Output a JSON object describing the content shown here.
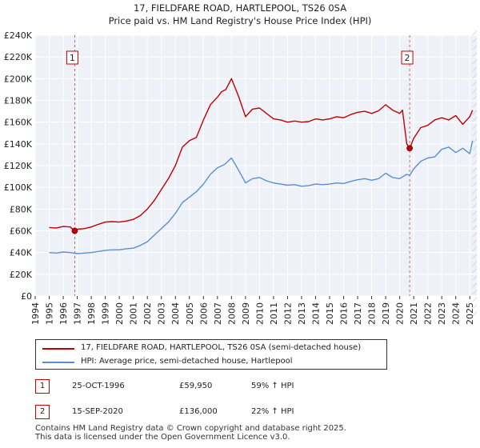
{
  "chart_data": {
    "type": "line",
    "title": "17, FIELDFARE ROAD, HARTLEPOOL, TS26 0SA",
    "subtitle": "Price paid vs. HM Land Registry's House Price Index (HPI)",
    "xlabel": "",
    "ylabel": "",
    "xlim": [
      1994,
      2025.5
    ],
    "ylim": [
      0,
      240000
    ],
    "x_ticks": [
      "1994",
      "1995",
      "1996",
      "1997",
      "1998",
      "1999",
      "2000",
      "2001",
      "2002",
      "2003",
      "2004",
      "2005",
      "2006",
      "2007",
      "2008",
      "2009",
      "2010",
      "2011",
      "2012",
      "2013",
      "2014",
      "2015",
      "2016",
      "2017",
      "2018",
      "2019",
      "2020",
      "2021",
      "2022",
      "2023",
      "2024",
      "2025"
    ],
    "y_ticks": [
      "£0",
      "£20K",
      "£40K",
      "£60K",
      "£80K",
      "£100K",
      "£120K",
      "£140K",
      "£160K",
      "£180K",
      "£200K",
      "£220K",
      "£240K"
    ],
    "grid": true,
    "series": [
      {
        "name": "17, FIELDFARE ROAD, HARTLEPOOL, TS26 0SA (semi-detached house)",
        "color": "#c00000",
        "x": [
          1995.0,
          1995.5,
          1996.0,
          1996.5,
          1996.82,
          1997.0,
          1997.5,
          1998.0,
          1998.5,
          1999.0,
          1999.5,
          2000.0,
          2000.5,
          2001.0,
          2001.5,
          2002.0,
          2002.5,
          2003.0,
          2003.5,
          2004.0,
          2004.5,
          2005.0,
          2005.5,
          2006.0,
          2006.5,
          2007.0,
          2007.3,
          2007.6,
          2008.0,
          2008.5,
          2009.0,
          2009.5,
          2010.0,
          2010.5,
          2011.0,
          2011.5,
          2012.0,
          2012.5,
          2013.0,
          2013.5,
          2014.0,
          2014.5,
          2015.0,
          2015.5,
          2016.0,
          2016.5,
          2017.0,
          2017.5,
          2018.0,
          2018.5,
          2019.0,
          2019.5,
          2020.0,
          2020.2,
          2020.5,
          2020.71,
          2021.0,
          2021.5,
          2022.0,
          2022.5,
          2023.0,
          2023.5,
          2024.0,
          2024.5,
          2025.0,
          2025.2
        ],
        "y": [
          63000,
          62500,
          64000,
          63500,
          59950,
          61500,
          62000,
          63500,
          66000,
          68000,
          68500,
          68000,
          69000,
          70500,
          74000,
          80000,
          88000,
          98000,
          108000,
          120000,
          137000,
          143000,
          146000,
          162000,
          176000,
          183000,
          188000,
          190000,
          200000,
          184000,
          165000,
          172000,
          173000,
          168000,
          163000,
          162000,
          160000,
          161000,
          160000,
          160500,
          163000,
          162000,
          163000,
          165000,
          164000,
          167000,
          169000,
          170000,
          168000,
          170500,
          176000,
          171000,
          168000,
          171000,
          140000,
          136000,
          145000,
          155000,
          157000,
          162000,
          164000,
          162000,
          166000,
          158000,
          165000,
          171000
        ]
      },
      {
        "name": "HPI: Average price, semi-detached house, Hartlepool",
        "color": "#5b8fd0",
        "x": [
          1995.0,
          1995.5,
          1996.0,
          1996.5,
          1997.0,
          1997.5,
          1998.0,
          1998.5,
          1999.0,
          1999.5,
          2000.0,
          2000.5,
          2001.0,
          2001.5,
          2002.0,
          2002.5,
          2003.0,
          2003.5,
          2004.0,
          2004.5,
          2005.0,
          2005.5,
          2006.0,
          2006.5,
          2007.0,
          2007.5,
          2008.0,
          2008.5,
          2009.0,
          2009.5,
          2010.0,
          2010.5,
          2011.0,
          2011.5,
          2012.0,
          2012.5,
          2013.0,
          2013.5,
          2014.0,
          2014.5,
          2015.0,
          2015.5,
          2016.0,
          2016.5,
          2017.0,
          2017.5,
          2018.0,
          2018.5,
          2019.0,
          2019.5,
          2020.0,
          2020.5,
          2020.71,
          2021.0,
          2021.5,
          2022.0,
          2022.5,
          2023.0,
          2023.5,
          2024.0,
          2024.5,
          2025.0,
          2025.2
        ],
        "y": [
          40000,
          39500,
          40500,
          40000,
          39000,
          39500,
          40000,
          41000,
          42000,
          42500,
          42500,
          43500,
          44000,
          46500,
          50000,
          56000,
          62000,
          68000,
          76000,
          86000,
          91000,
          96000,
          103000,
          112000,
          118000,
          121000,
          127000,
          116000,
          104000,
          108000,
          109000,
          106000,
          104000,
          103000,
          102000,
          102500,
          101000,
          101500,
          103000,
          102500,
          103000,
          104000,
          103500,
          105500,
          107000,
          108000,
          106500,
          108000,
          113000,
          109000,
          108000,
          112000,
          111000,
          117000,
          124000,
          127000,
          128000,
          135000,
          137000,
          132000,
          136000,
          131000,
          143000
        ]
      }
    ],
    "sales": [
      {
        "label": "1",
        "x": 1996.82,
        "y": 59950
      },
      {
        "label": "2",
        "x": 2020.71,
        "y": 136000
      }
    ]
  },
  "legend": {
    "items": [
      {
        "label": "17, FIELDFARE ROAD, HARTLEPOOL, TS26 0SA (semi-detached house)",
        "color": "#c00000"
      },
      {
        "label": "HPI: Average price, semi-detached house, Hartlepool",
        "color": "#5b8fd0"
      }
    ]
  },
  "sales_table": [
    {
      "num": "1",
      "date": "25-OCT-1996",
      "price": "£59,950",
      "hpi": "59% ↑ HPI"
    },
    {
      "num": "2",
      "date": "15-SEP-2020",
      "price": "£136,000",
      "hpi": "22% ↑ HPI"
    }
  ],
  "footer": {
    "line1": "Contains HM Land Registry data © Crown copyright and database right 2025.",
    "line2": "This data is licensed under the Open Government Licence v3.0."
  }
}
